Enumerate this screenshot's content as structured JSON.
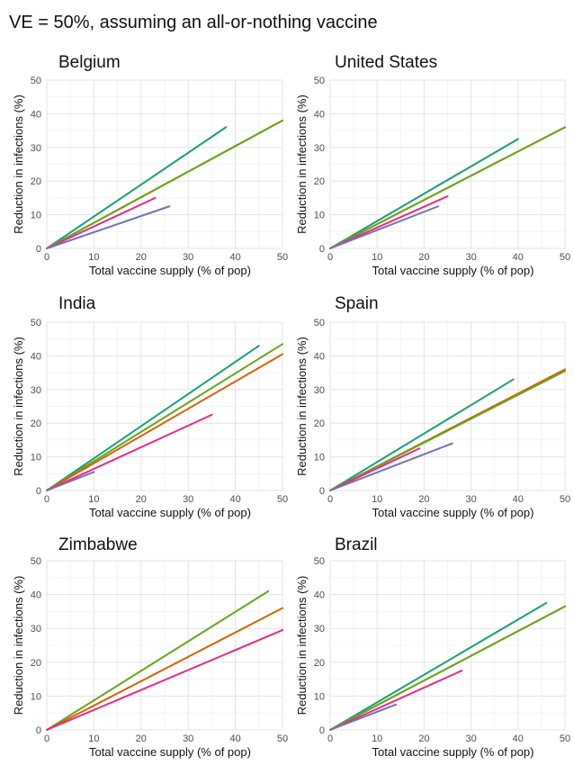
{
  "title": "VE = 50%, assuming an all-or-nothing vaccine",
  "colors": {
    "teal": "#1b9e77",
    "green": "#66a61e",
    "orange": "#d95f02",
    "pink": "#e7298a",
    "purple": "#7570b3"
  },
  "chart_data": [
    {
      "type": "line",
      "title": "Belgium",
      "xlabel": "Total vaccine supply (% of pop)",
      "ylabel": "Reduction in infections (%)",
      "xlim": [
        0,
        50
      ],
      "ylim": [
        0,
        50
      ],
      "xticks": [
        0,
        10,
        20,
        30,
        40,
        50
      ],
      "yticks": [
        0,
        10,
        20,
        30,
        40,
        50
      ],
      "grid": true,
      "series": [
        {
          "color": "teal",
          "x": [
            0,
            38
          ],
          "y": [
            0,
            36
          ]
        },
        {
          "color": "orange",
          "x": [
            0,
            50
          ],
          "y": [
            0,
            38
          ]
        },
        {
          "color": "green",
          "x": [
            0,
            50
          ],
          "y": [
            0,
            38
          ]
        },
        {
          "color": "pink",
          "x": [
            0,
            23
          ],
          "y": [
            0,
            15
          ]
        },
        {
          "color": "purple",
          "x": [
            0,
            26
          ],
          "y": [
            0,
            12.5
          ]
        }
      ]
    },
    {
      "type": "line",
      "title": "United States",
      "xlabel": "Total vaccine supply (% of pop)",
      "ylabel": "Reduction in infections (%)",
      "xlim": [
        0,
        50
      ],
      "ylim": [
        0,
        50
      ],
      "xticks": [
        0,
        10,
        20,
        30,
        40,
        50
      ],
      "yticks": [
        0,
        10,
        20,
        30,
        40,
        50
      ],
      "grid": true,
      "series": [
        {
          "color": "teal",
          "x": [
            0,
            40
          ],
          "y": [
            0,
            32.5
          ]
        },
        {
          "color": "orange",
          "x": [
            0,
            50
          ],
          "y": [
            0,
            36
          ]
        },
        {
          "color": "green",
          "x": [
            0,
            50
          ],
          "y": [
            0,
            36
          ]
        },
        {
          "color": "pink",
          "x": [
            0,
            25
          ],
          "y": [
            0,
            15.5
          ]
        },
        {
          "color": "purple",
          "x": [
            0,
            23
          ],
          "y": [
            0,
            12.5
          ]
        }
      ]
    },
    {
      "type": "line",
      "title": "India",
      "xlabel": "Total vaccine supply (% of pop)",
      "ylabel": "Reduction in infections (%)",
      "xlim": [
        0,
        50
      ],
      "ylim": [
        0,
        50
      ],
      "xticks": [
        0,
        10,
        20,
        30,
        40,
        50
      ],
      "yticks": [
        0,
        10,
        20,
        30,
        40,
        50
      ],
      "grid": true,
      "series": [
        {
          "color": "teal",
          "x": [
            0,
            45
          ],
          "y": [
            0,
            43
          ]
        },
        {
          "color": "green",
          "x": [
            0,
            50
          ],
          "y": [
            0,
            43.5
          ]
        },
        {
          "color": "orange",
          "x": [
            0,
            50
          ],
          "y": [
            0,
            40.5
          ]
        },
        {
          "color": "pink",
          "x": [
            0,
            35
          ],
          "y": [
            0,
            22.5
          ]
        },
        {
          "color": "purple",
          "x": [
            0,
            10
          ],
          "y": [
            0,
            5.5
          ]
        }
      ]
    },
    {
      "type": "line",
      "title": "Spain",
      "xlabel": "Total vaccine supply (% of pop)",
      "ylabel": "Reduction in infections (%)",
      "xlim": [
        0,
        50
      ],
      "ylim": [
        0,
        50
      ],
      "xticks": [
        0,
        10,
        20,
        30,
        40,
        50
      ],
      "yticks": [
        0,
        10,
        20,
        30,
        40,
        50
      ],
      "grid": true,
      "series": [
        {
          "color": "teal",
          "x": [
            0,
            39
          ],
          "y": [
            0,
            33
          ]
        },
        {
          "color": "orange",
          "x": [
            0,
            50
          ],
          "y": [
            0,
            36
          ]
        },
        {
          "color": "green",
          "x": [
            0,
            50
          ],
          "y": [
            0,
            35.5
          ]
        },
        {
          "color": "pink",
          "x": [
            0,
            19
          ],
          "y": [
            0,
            12.5
          ]
        },
        {
          "color": "purple",
          "x": [
            0,
            26
          ],
          "y": [
            0,
            14
          ]
        }
      ]
    },
    {
      "type": "line",
      "title": "Zimbabwe",
      "xlabel": "Total vaccine supply (% of pop)",
      "ylabel": "Reduction in infections (%)",
      "xlim": [
        0,
        50
      ],
      "ylim": [
        0,
        50
      ],
      "xticks": [
        0,
        10,
        20,
        30,
        40,
        50
      ],
      "yticks": [
        0,
        10,
        20,
        30,
        40,
        50
      ],
      "grid": true,
      "series": [
        {
          "color": "green",
          "x": [
            0,
            47
          ],
          "y": [
            0,
            41
          ]
        },
        {
          "color": "orange",
          "x": [
            0,
            50
          ],
          "y": [
            0,
            36
          ]
        },
        {
          "color": "pink",
          "x": [
            0,
            50
          ],
          "y": [
            0,
            29.5
          ]
        }
      ]
    },
    {
      "type": "line",
      "title": "Brazil",
      "xlabel": "Total vaccine supply (% of pop)",
      "ylabel": "Reduction in infections (%)",
      "xlim": [
        0,
        50
      ],
      "ylim": [
        0,
        50
      ],
      "xticks": [
        0,
        10,
        20,
        30,
        40,
        50
      ],
      "yticks": [
        0,
        10,
        20,
        30,
        40,
        50
      ],
      "grid": true,
      "series": [
        {
          "color": "teal",
          "x": [
            0,
            46
          ],
          "y": [
            0,
            37.5
          ]
        },
        {
          "color": "orange",
          "x": [
            0,
            50
          ],
          "y": [
            0,
            36.5
          ]
        },
        {
          "color": "green",
          "x": [
            0,
            50
          ],
          "y": [
            0,
            36.5
          ]
        },
        {
          "color": "pink",
          "x": [
            0,
            28
          ],
          "y": [
            0,
            17.5
          ]
        },
        {
          "color": "purple",
          "x": [
            0,
            14
          ],
          "y": [
            0,
            7.5
          ]
        }
      ]
    }
  ]
}
